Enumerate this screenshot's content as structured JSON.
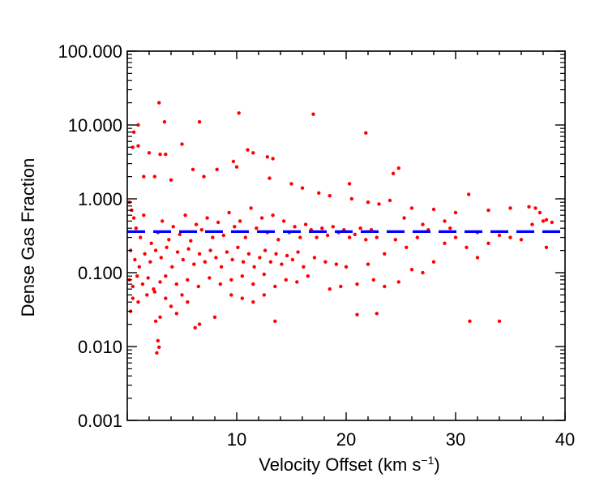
{
  "chart_data": {
    "type": "scatter",
    "title": "",
    "xlabel": "Velocity Offset (km s",
    "xlabel_sup": "−1",
    "xlabel_suffix": ")",
    "ylabel": "Dense Gas Fraction",
    "xlim": [
      0,
      40
    ],
    "ylim": [
      0.001,
      100
    ],
    "yscale": "log",
    "grid": false,
    "x_ticks": [
      10,
      20,
      30,
      40
    ],
    "x_tick_labels": [
      "10",
      "20",
      "30",
      "40"
    ],
    "y_ticks": [
      0.001,
      0.01,
      0.1,
      1,
      10,
      100
    ],
    "y_tick_labels": [
      "0.001",
      "0.010",
      "0.100",
      "1.000",
      "10.000",
      "100.000"
    ],
    "reference_line": {
      "y": 0.36,
      "style": "dashed",
      "color": "#0000ff"
    },
    "point_color": "#ff0000",
    "series": [
      {
        "points": [
          [
            2.9,
            20.0
          ],
          [
            10.2,
            14.5
          ],
          [
            17.0,
            14.0
          ],
          [
            21.8,
            7.8
          ],
          [
            6.6,
            11.0
          ],
          [
            3.4,
            11.0
          ],
          [
            1.0,
            10.0
          ],
          [
            0.6,
            8.0
          ],
          [
            0.5,
            5.0
          ],
          [
            1.0,
            5.2
          ],
          [
            5.0,
            5.5
          ],
          [
            11.0,
            4.6
          ],
          [
            11.5,
            4.2
          ],
          [
            3.5,
            4.0
          ],
          [
            2.0,
            4.2
          ],
          [
            3.0,
            4.0
          ],
          [
            12.8,
            3.7
          ],
          [
            13.3,
            3.5
          ],
          [
            9.7,
            3.2
          ],
          [
            24.8,
            2.6
          ],
          [
            24.3,
            2.2
          ],
          [
            20.3,
            1.6
          ],
          [
            10.0,
            2.7
          ],
          [
            8.2,
            2.5
          ],
          [
            6.0,
            2.5
          ],
          [
            7.0,
            2.0
          ],
          [
            1.5,
            2.0
          ],
          [
            2.5,
            2.0
          ],
          [
            4.0,
            1.8
          ],
          [
            13.0,
            1.9
          ],
          [
            15.0,
            1.6
          ],
          [
            16.0,
            1.4
          ],
          [
            17.5,
            1.2
          ],
          [
            18.5,
            1.1
          ],
          [
            20.5,
            1.0
          ],
          [
            31.2,
            1.15
          ],
          [
            22.0,
            0.9
          ],
          [
            23.0,
            0.85
          ],
          [
            24.0,
            0.95
          ],
          [
            28.0,
            0.72
          ],
          [
            26.0,
            0.75
          ],
          [
            30.0,
            0.65
          ],
          [
            33.0,
            0.7
          ],
          [
            35.0,
            0.75
          ],
          [
            36.7,
            0.78
          ],
          [
            37.3,
            0.75
          ],
          [
            37.7,
            0.65
          ],
          [
            38.3,
            0.52
          ],
          [
            37.0,
            0.45
          ],
          [
            38.0,
            0.5
          ],
          [
            38.8,
            0.48
          ],
          [
            25.3,
            0.55
          ],
          [
            27.0,
            0.45
          ],
          [
            29.0,
            0.5
          ],
          [
            0.2,
            0.9
          ],
          [
            0.4,
            0.7
          ],
          [
            0.6,
            0.55
          ],
          [
            0.8,
            0.4
          ],
          [
            1.2,
            0.3
          ],
          [
            1.5,
            0.6
          ],
          [
            2.2,
            0.25
          ],
          [
            2.8,
            0.35
          ],
          [
            3.2,
            0.5
          ],
          [
            3.8,
            0.28
          ],
          [
            4.2,
            0.42
          ],
          [
            4.8,
            0.33
          ],
          [
            5.3,
            0.6
          ],
          [
            5.8,
            0.27
          ],
          [
            6.3,
            0.45
          ],
          [
            6.8,
            0.38
          ],
          [
            7.3,
            0.55
          ],
          [
            7.8,
            0.3
          ],
          [
            8.3,
            0.48
          ],
          [
            8.8,
            0.32
          ],
          [
            9.3,
            0.65
          ],
          [
            9.8,
            0.42
          ],
          [
            10.3,
            0.5
          ],
          [
            10.8,
            0.3
          ],
          [
            11.3,
            0.75
          ],
          [
            11.8,
            0.4
          ],
          [
            12.3,
            0.55
          ],
          [
            12.8,
            0.35
          ],
          [
            13.3,
            0.6
          ],
          [
            13.8,
            0.28
          ],
          [
            14.3,
            0.5
          ],
          [
            14.8,
            0.35
          ],
          [
            15.3,
            0.42
          ],
          [
            15.8,
            0.3
          ],
          [
            16.3,
            0.45
          ],
          [
            16.8,
            0.38
          ],
          [
            17.3,
            0.3
          ],
          [
            17.8,
            0.4
          ],
          [
            18.3,
            0.32
          ],
          [
            18.8,
            0.42
          ],
          [
            19.3,
            0.35
          ],
          [
            19.8,
            0.38
          ],
          [
            20.3,
            0.3
          ],
          [
            20.8,
            0.33
          ],
          [
            21.3,
            0.4
          ],
          [
            21.8,
            0.28
          ],
          [
            22.3,
            0.38
          ],
          [
            22.8,
            0.3
          ],
          [
            0.3,
            0.2
          ],
          [
            0.7,
            0.15
          ],
          [
            1.1,
            0.12
          ],
          [
            1.6,
            0.18
          ],
          [
            2.1,
            0.14
          ],
          [
            2.6,
            0.2
          ],
          [
            3.1,
            0.16
          ],
          [
            3.6,
            0.22
          ],
          [
            4.1,
            0.12
          ],
          [
            4.6,
            0.19
          ],
          [
            5.1,
            0.15
          ],
          [
            5.6,
            0.21
          ],
          [
            6.1,
            0.13
          ],
          [
            6.6,
            0.18
          ],
          [
            7.1,
            0.14
          ],
          [
            7.6,
            0.2
          ],
          [
            8.1,
            0.16
          ],
          [
            8.6,
            0.12
          ],
          [
            9.1,
            0.19
          ],
          [
            9.6,
            0.15
          ],
          [
            10.1,
            0.22
          ],
          [
            10.6,
            0.14
          ],
          [
            11.1,
            0.18
          ],
          [
            11.6,
            0.12
          ],
          [
            12.1,
            0.16
          ],
          [
            12.6,
            0.2
          ],
          [
            13.1,
            0.14
          ],
          [
            13.6,
            0.18
          ],
          [
            14.1,
            0.13
          ],
          [
            14.6,
            0.17
          ],
          [
            15.1,
            0.15
          ],
          [
            15.6,
            0.19
          ],
          [
            16.1,
            0.12
          ],
          [
            17.1,
            0.16
          ],
          [
            18.1,
            0.14
          ],
          [
            19.1,
            0.13
          ],
          [
            0.2,
            0.08
          ],
          [
            0.5,
            0.065
          ],
          [
            0.9,
            0.09
          ],
          [
            1.4,
            0.07
          ],
          [
            1.9,
            0.085
          ],
          [
            2.4,
            0.06
          ],
          [
            3.0,
            0.075
          ],
          [
            3.5,
            0.09
          ],
          [
            4.5,
            0.07
          ],
          [
            5.5,
            0.08
          ],
          [
            6.5,
            0.065
          ],
          [
            7.5,
            0.085
          ],
          [
            8.5,
            0.07
          ],
          [
            9.5,
            0.08
          ],
          [
            10.5,
            0.09
          ],
          [
            11.5,
            0.07
          ],
          [
            12.5,
            0.095
          ],
          [
            13.5,
            0.065
          ],
          [
            14.5,
            0.08
          ],
          [
            15.5,
            0.075
          ],
          [
            16.5,
            0.09
          ],
          [
            18.5,
            0.06
          ],
          [
            19.5,
            0.065
          ],
          [
            21.0,
            0.07
          ],
          [
            22.5,
            0.08
          ],
          [
            23.5,
            0.065
          ],
          [
            24.8,
            0.075
          ],
          [
            26.0,
            0.11
          ],
          [
            27.0,
            0.1
          ],
          [
            28.0,
            0.14
          ],
          [
            29.0,
            0.25
          ],
          [
            30.0,
            0.3
          ],
          [
            31.0,
            0.22
          ],
          [
            32.0,
            0.16
          ],
          [
            33.0,
            0.25
          ],
          [
            34.0,
            0.32
          ],
          [
            35.0,
            0.3
          ],
          [
            36.0,
            0.28
          ],
          [
            38.3,
            0.22
          ],
          [
            32.0,
            0.35
          ],
          [
            29.5,
            0.4
          ],
          [
            27.5,
            0.38
          ],
          [
            26.5,
            0.3
          ],
          [
            25.5,
            0.22
          ],
          [
            24.5,
            0.28
          ],
          [
            23.5,
            0.18
          ],
          [
            22.0,
            0.13
          ],
          [
            20.0,
            0.12
          ],
          [
            0.3,
            0.03
          ],
          [
            0.5,
            0.045
          ],
          [
            1.0,
            0.04
          ],
          [
            1.8,
            0.05
          ],
          [
            2.5,
            0.055
          ],
          [
            3.0,
            0.025
          ],
          [
            3.5,
            0.045
          ],
          [
            4.0,
            0.035
          ],
          [
            4.5,
            0.028
          ],
          [
            5.0,
            0.05
          ],
          [
            5.5,
            0.04
          ],
          [
            6.2,
            0.018
          ],
          [
            6.6,
            0.02
          ],
          [
            8.0,
            0.025
          ],
          [
            9.5,
            0.05
          ],
          [
            10.5,
            0.045
          ],
          [
            11.5,
            0.04
          ],
          [
            12.5,
            0.05
          ],
          [
            13.5,
            0.022
          ],
          [
            21.0,
            0.027
          ],
          [
            22.8,
            0.028
          ],
          [
            31.3,
            0.022
          ],
          [
            34.0,
            0.022
          ],
          [
            2.8,
            0.012
          ],
          [
            2.7,
            0.0082
          ],
          [
            2.9,
            0.0098
          ],
          [
            2.6,
            0.022
          ]
        ]
      }
    ]
  }
}
